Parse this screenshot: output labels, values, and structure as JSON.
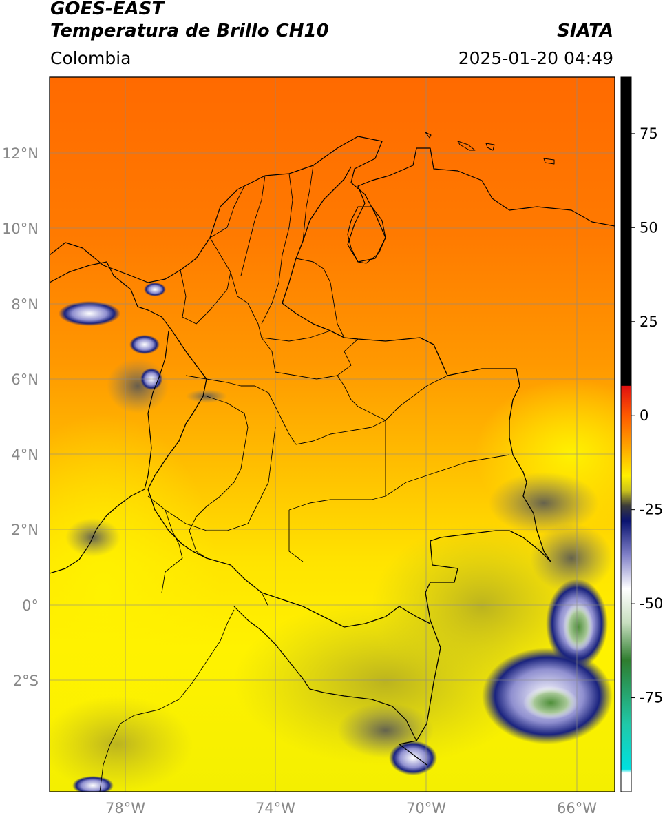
{
  "header": {
    "satellite": "GOES-EAST",
    "product": "Temperatura de Brillo CH10",
    "region": "Colombia",
    "source": "SIATA",
    "datetime": "2025-01-20 04:49"
  },
  "map": {
    "lat_range": [
      -4.9,
      14.1
    ],
    "lon_range": [
      -80.0,
      -65.0
    ],
    "lat_ticks": [
      {
        "value": 12,
        "label": "12°N"
      },
      {
        "value": 10,
        "label": "10°N"
      },
      {
        "value": 8,
        "label": "8°N"
      },
      {
        "value": 6,
        "label": "6°N"
      },
      {
        "value": 4,
        "label": "4°N"
      },
      {
        "value": 2,
        "label": "2°N"
      },
      {
        "value": 0,
        "label": "0°"
      },
      {
        "value": -2,
        "label": "2°S"
      }
    ],
    "lon_ticks": [
      {
        "value": -78,
        "label": "78°W"
      },
      {
        "value": -74,
        "label": "74°W"
      },
      {
        "value": -70,
        "label": "70°W"
      },
      {
        "value": -66,
        "label": "66°W"
      }
    ],
    "grid": true,
    "colors": {
      "warm_orange": "#ff6a00",
      "orange": "#ff9a00",
      "yellow": "#fff200",
      "olive": "#c9c21c",
      "gray": "#6e6e6e",
      "navy": "#0e1a6e",
      "white": "#ffffff",
      "green": "#5f9d4a"
    }
  },
  "colorbar": {
    "range": [
      -100,
      90
    ],
    "ticks": [
      {
        "value": 75,
        "label": "75"
      },
      {
        "value": 50,
        "label": "50"
      },
      {
        "value": 25,
        "label": "25"
      },
      {
        "value": 0,
        "label": "0"
      },
      {
        "value": -25,
        "label": "-25"
      },
      {
        "value": -50,
        "label": "-50"
      },
      {
        "value": -75,
        "label": "-75"
      }
    ],
    "stops": [
      {
        "value": 90,
        "color": "#000000"
      },
      {
        "value": 8,
        "color": "#000000"
      },
      {
        "value": 7.9,
        "color": "#e01010"
      },
      {
        "value": 0,
        "color": "#ff5a00"
      },
      {
        "value": -8,
        "color": "#ffa200"
      },
      {
        "value": -16,
        "color": "#fff000"
      },
      {
        "value": -20,
        "color": "#c9c21c"
      },
      {
        "value": -24,
        "color": "#3a3a3a"
      },
      {
        "value": -28,
        "color": "#0a1470"
      },
      {
        "value": -37,
        "color": "#8080c8"
      },
      {
        "value": -46,
        "color": "#ffffff"
      },
      {
        "value": -55,
        "color": "#c8dfc0"
      },
      {
        "value": -65,
        "color": "#2e7d2e"
      },
      {
        "value": -82,
        "color": "#20c8a8"
      },
      {
        "value": -94,
        "color": "#00e0e0"
      },
      {
        "value": -95,
        "color": "#ffffff"
      },
      {
        "value": -100,
        "color": "#ffffff"
      }
    ]
  }
}
